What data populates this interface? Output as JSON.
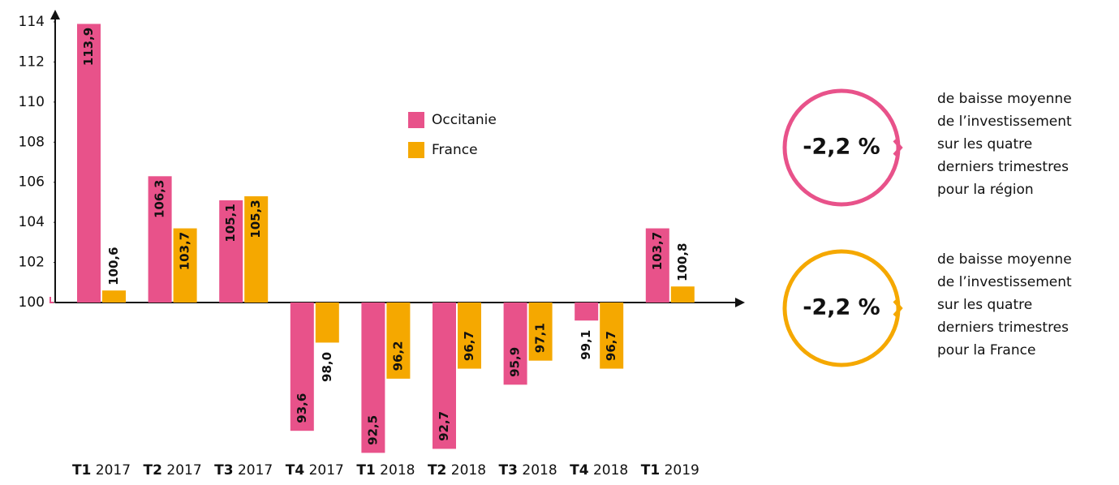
{
  "chart_data": {
    "type": "bar",
    "categories": [
      "T1 2017",
      "T2 2017",
      "T3 2017",
      "T4 2017",
      "T1 2018",
      "T2 2018",
      "T3 2018",
      "T4 2018",
      "T1 2019"
    ],
    "series": [
      {
        "name": "Occitanie",
        "color": "#e8528a",
        "values": [
          113.9,
          106.3,
          105.1,
          93.6,
          92.5,
          92.7,
          95.9,
          99.1,
          103.7
        ],
        "value_labels": [
          "113,9",
          "106,3",
          "105,1",
          "93,6",
          "92,5",
          "92,7",
          "95,9",
          "99,1",
          "103,7"
        ]
      },
      {
        "name": "France",
        "color": "#f5a800",
        "values": [
          100.6,
          103.7,
          105.3,
          98.0,
          96.2,
          96.7,
          97.1,
          96.7,
          100.8
        ],
        "value_labels": [
          "100,6",
          "103,7",
          "105,3",
          "98,0",
          "96,2",
          "96,7",
          "97,1",
          "96,7",
          "100,8"
        ]
      }
    ],
    "ylim": [
      100,
      114
    ],
    "yticks": [
      100,
      102,
      104,
      106,
      108,
      110,
      112,
      114
    ],
    "annotations": [
      {
        "value": "-2,2 %",
        "color": "#e8528a",
        "lines": [
          "de baisse moyenne",
          "de l’investissement",
          "sur les quatre",
          "derniers trimestres",
          "pour la région"
        ]
      },
      {
        "value": "-2,2 %",
        "color": "#f5a800",
        "lines": [
          "de baisse moyenne",
          "de l’investissement",
          "sur les quatre",
          "derniers trimestres",
          "pour la France"
        ]
      }
    ]
  }
}
